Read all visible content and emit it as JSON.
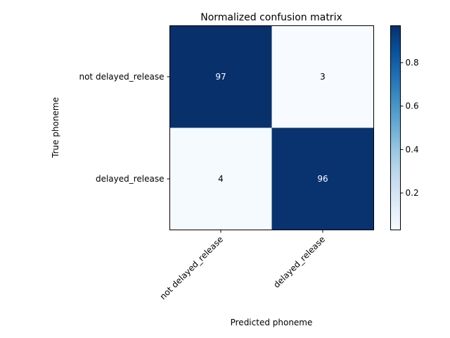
{
  "chart_data": {
    "type": "heatmap",
    "title": "Normalized confusion matrix",
    "xlabel": "Predicted phoneme",
    "ylabel": "True phoneme",
    "x_categories": [
      "not delayed_release",
      "delayed_release"
    ],
    "y_categories": [
      "not delayed_release",
      "delayed_release"
    ],
    "values": [
      [
        0.97,
        0.03
      ],
      [
        0.04,
        0.96
      ]
    ],
    "cell_labels": [
      [
        "97",
        "3"
      ],
      [
        "4",
        "96"
      ]
    ],
    "colormap": "Blues",
    "colorbar": {
      "range": [
        0.03,
        0.97
      ],
      "ticks": [
        0.2,
        0.4,
        0.6,
        0.8
      ],
      "tick_labels": [
        "0.2",
        "0.4",
        "0.6",
        "0.8"
      ]
    },
    "colors": {
      "low": "#f7fbff",
      "high": "#08306b"
    },
    "grid": false
  }
}
